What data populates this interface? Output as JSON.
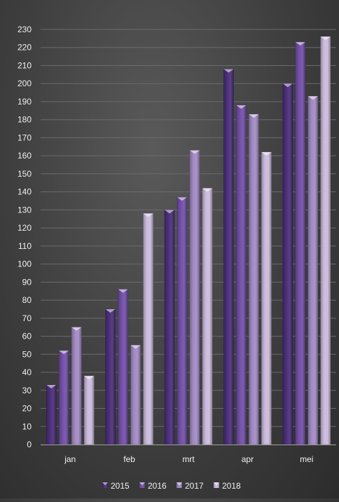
{
  "chart_data": {
    "type": "bar",
    "title": "",
    "xlabel": "",
    "ylabel": "",
    "categories": [
      "jan",
      "feb",
      "mrt",
      "apr",
      "mei"
    ],
    "series": [
      {
        "name": "2015",
        "values": [
          33,
          75,
          130,
          208,
          200
        ],
        "color": "#4b2f7a"
      },
      {
        "name": "2016",
        "values": [
          52,
          86,
          137,
          188,
          223
        ],
        "color": "#7350a8"
      },
      {
        "name": "2017",
        "values": [
          65,
          55,
          163,
          183,
          193
        ],
        "color": "#a28bc4"
      },
      {
        "name": "2018",
        "values": [
          38,
          128,
          142,
          162,
          226
        ],
        "color": "#cbbbdd"
      }
    ],
    "ylim": [
      0,
      230
    ],
    "yticks": [
      "0",
      "10",
      "20",
      "30",
      "40",
      "50",
      "60",
      "70",
      "80",
      "90",
      "100",
      "110",
      "120",
      "130",
      "140",
      "150",
      "160",
      "170",
      "180",
      "190",
      "200",
      "210",
      "220",
      "230"
    ],
    "grid": true,
    "legend_position": "bottom"
  }
}
